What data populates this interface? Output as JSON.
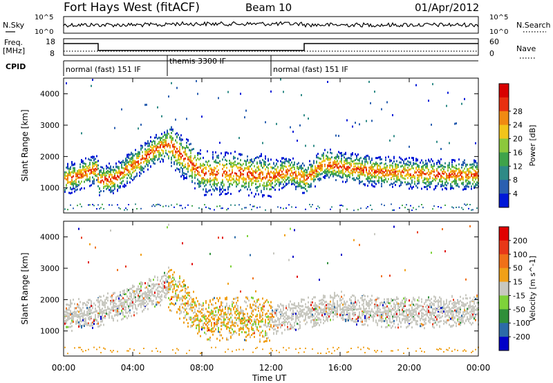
{
  "header": {
    "station": "Fort Hays West (fitACF)",
    "beam": "Beam 10",
    "date": "01/Apr/2012"
  },
  "noise_panel": {
    "left_label": "N.Sky",
    "right_label": "N.Search",
    "left_ticks": [
      "10^5",
      "10^0"
    ],
    "right_ticks": [
      "10^5",
      "10^0"
    ]
  },
  "freq_panel": {
    "left_label_top": "Freq.",
    "left_label_bottom": "[MHz]",
    "left_ticks": [
      "18",
      "8"
    ],
    "right_label": "Nave",
    "right_ticks": [
      "60",
      "0"
    ]
  },
  "cpid_panel": {
    "label": "CPID",
    "segments": [
      {
        "label": "normal (fast) 151 IF",
        "start_h": 0,
        "end_h": 6
      },
      {
        "label": "themis 3300 IF",
        "start_h": 6,
        "end_h": 12
      },
      {
        "label": "normal (fast) 151 IF",
        "start_h": 12,
        "end_h": 24
      }
    ]
  },
  "chart_data": [
    {
      "type": "heatmap",
      "name": "power",
      "xlabel": "",
      "ylabel": "Slant Range [km]",
      "xlim": [
        0,
        24
      ],
      "ylim": [
        200,
        4500
      ],
      "yticks": [
        1000,
        2000,
        3000,
        4000
      ],
      "x_ticks": [
        "00:00",
        "04:00",
        "08:00",
        "12:00",
        "16:00",
        "20:00",
        "00:00"
      ],
      "colorbar": {
        "label": "Power [dB]",
        "ticks": [
          "4",
          "8",
          "12",
          "16",
          "20",
          "24",
          "28"
        ],
        "colors": [
          "#0018d8",
          "#2a5fb0",
          "#2e8a86",
          "#3fa34a",
          "#8cc83c",
          "#f2c41a",
          "#f08a12",
          "#e83010",
          "#d80000"
        ]
      },
      "echo_band": [
        {
          "x": 0.0,
          "y": 1300
        },
        {
          "x": 1.0,
          "y": 1450
        },
        {
          "x": 1.9,
          "y": 1650
        },
        {
          "x": 2.0,
          "y": 1250
        },
        {
          "x": 3.0,
          "y": 1350
        },
        {
          "x": 4.0,
          "y": 1750
        },
        {
          "x": 5.0,
          "y": 2150
        },
        {
          "x": 6.0,
          "y": 2450
        },
        {
          "x": 8.0,
          "y": 1500
        },
        {
          "x": 10.0,
          "y": 1500
        },
        {
          "x": 12.0,
          "y": 1400
        },
        {
          "x": 13.0,
          "y": 1550
        },
        {
          "x": 14.0,
          "y": 1300
        },
        {
          "x": 15.0,
          "y": 1800
        },
        {
          "x": 16.0,
          "y": 1700
        },
        {
          "x": 18.0,
          "y": 1550
        },
        {
          "x": 20.0,
          "y": 1500
        },
        {
          "x": 22.0,
          "y": 1450
        },
        {
          "x": 24.0,
          "y": 1450
        }
      ]
    },
    {
      "type": "heatmap",
      "name": "velocity",
      "xlabel": "Time UT",
      "ylabel": "Slant Range [km]",
      "xlim": [
        0,
        24
      ],
      "ylim": [
        200,
        4500
      ],
      "yticks": [
        1000,
        2000,
        3000,
        4000
      ],
      "x_ticks": [
        "00:00",
        "04:00",
        "08:00",
        "12:00",
        "16:00",
        "20:00",
        "00:00"
      ],
      "colorbar": {
        "label": "Velocity [m s^-1]",
        "ticks": [
          "200",
          "100",
          "50",
          "15",
          "-15",
          "-50",
          "-100",
          "-200"
        ],
        "colors": [
          "#0000c8",
          "#2c6ba8",
          "#2f8f3a",
          "#7ed23a",
          "#c8c8c0",
          "#f0a018",
          "#f07018",
          "#e83818",
          "#e00000"
        ]
      },
      "echo_band": [
        {
          "x": 0.0,
          "y": 1500
        },
        {
          "x": 2.0,
          "y": 1650
        },
        {
          "x": 4.0,
          "y": 2000
        },
        {
          "x": 6.0,
          "y": 2450
        },
        {
          "x": 8.0,
          "y": 1400
        },
        {
          "x": 10.0,
          "y": 1450
        },
        {
          "x": 12.0,
          "y": 1350
        },
        {
          "x": 14.0,
          "y": 1600
        },
        {
          "x": 16.0,
          "y": 1800
        },
        {
          "x": 18.0,
          "y": 1650
        },
        {
          "x": 20.0,
          "y": 1600
        },
        {
          "x": 22.0,
          "y": 1650
        },
        {
          "x": 24.0,
          "y": 1700
        }
      ]
    }
  ]
}
